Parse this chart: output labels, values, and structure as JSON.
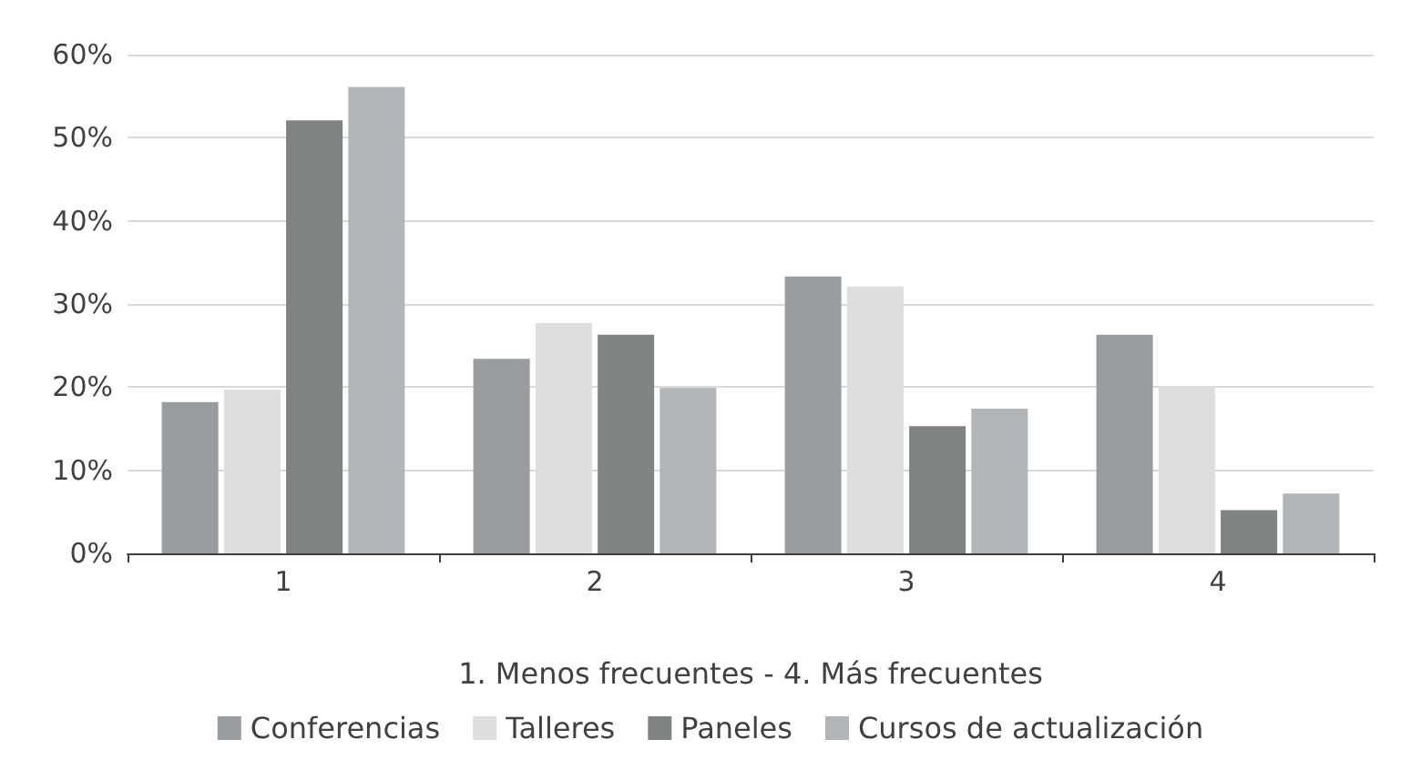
{
  "chart_data": {
    "type": "bar",
    "xlabel": "1. Menos frecuentes - 4. Más frecuentes",
    "categories": [
      "1",
      "2",
      "3",
      "4"
    ],
    "series": [
      {
        "name": "Conferencias",
        "color": "#9a9d9f",
        "values": [
          18.2,
          23.4,
          33.3,
          26.3
        ]
      },
      {
        "name": "Talleres",
        "color": "#dcdedf",
        "values": [
          19.7,
          27.7,
          32.1,
          20.1
        ]
      },
      {
        "name": "Paneles",
        "color": "#7f8482",
        "values": [
          52.1,
          26.3,
          15.3,
          5.2
        ]
      },
      {
        "name": "Cursos de actualización",
        "color": "#b2b6b9",
        "values": [
          56.1,
          19.9,
          17.4,
          7.2
        ]
      }
    ],
    "ylim": [
      0,
      60
    ],
    "yticks": [
      {
        "value": 0,
        "label": "0%"
      },
      {
        "value": 10,
        "label": "10%"
      },
      {
        "value": 20,
        "label": "20%"
      },
      {
        "value": 30,
        "label": "30%"
      },
      {
        "value": 40,
        "label": "40%"
      },
      {
        "value": 50,
        "label": "50%"
      },
      {
        "value": 60,
        "label": "60%"
      }
    ],
    "grid": "y",
    "legend": "bottom"
  }
}
